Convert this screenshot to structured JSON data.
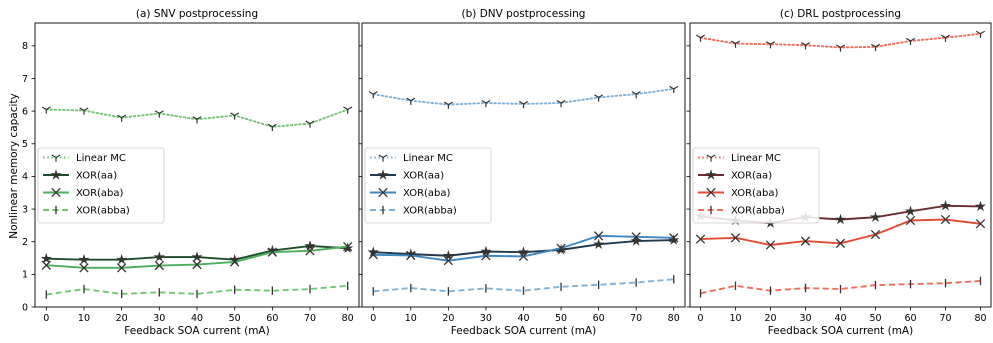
{
  "figure": {
    "ylabel": "Nonlinear memory capacity",
    "xlabel": "Feedback SOA current (mA)"
  },
  "chart_data": [
    {
      "type": "line",
      "title": "(a) SNV postprocessing",
      "xlabel": "Feedback SOA current (mA)",
      "ylabel": "Nonlinear memory capacity",
      "xlim": [
        -3,
        83
      ],
      "ylim": [
        0,
        8.7
      ],
      "xticks": [
        0,
        10,
        20,
        30,
        40,
        50,
        60,
        70,
        80
      ],
      "yticks": [
        0,
        1,
        2,
        3,
        4,
        5,
        6,
        7,
        8
      ],
      "grid": false,
      "legend_position": "center-left",
      "x": [
        0,
        10,
        20,
        30,
        40,
        50,
        60,
        70,
        80
      ],
      "series": [
        {
          "name": "Linear MC",
          "color": "#74c476",
          "style": "dotted",
          "marker": "tri",
          "values": [
            6.05,
            6.02,
            5.8,
            5.93,
            5.75,
            5.87,
            5.52,
            5.62,
            6.05
          ]
        },
        {
          "name": "XOR(aa)",
          "color": "#1f4d2b",
          "style": "solid",
          "marker": "star",
          "values": [
            1.48,
            1.45,
            1.45,
            1.53,
            1.53,
            1.45,
            1.73,
            1.87,
            1.8
          ]
        },
        {
          "name": "XOR(aba)",
          "color": "#4cae5c",
          "style": "solid",
          "marker": "x",
          "values": [
            1.28,
            1.2,
            1.2,
            1.27,
            1.3,
            1.38,
            1.68,
            1.72,
            1.85
          ]
        },
        {
          "name": "XOR(abba)",
          "color": "#74c476",
          "style": "dashed",
          "marker": "vline",
          "values": [
            0.38,
            0.55,
            0.4,
            0.45,
            0.4,
            0.53,
            0.5,
            0.55,
            0.65
          ]
        }
      ]
    },
    {
      "type": "line",
      "title": "(b) DNV postprocessing",
      "xlabel": "Feedback SOA current (mA)",
      "ylabel": "",
      "xlim": [
        -3,
        83
      ],
      "ylim": [
        0,
        8.7
      ],
      "xticks": [
        0,
        10,
        20,
        30,
        40,
        50,
        60,
        70,
        80
      ],
      "yticks": [
        0,
        1,
        2,
        3,
        4,
        5,
        6,
        7,
        8
      ],
      "grid": false,
      "legend_position": "center-left",
      "x": [
        0,
        10,
        20,
        30,
        40,
        50,
        60,
        70,
        80
      ],
      "series": [
        {
          "name": "Linear MC",
          "color": "#7fb1d8",
          "style": "dotted",
          "marker": "tri",
          "values": [
            6.52,
            6.32,
            6.2,
            6.25,
            6.22,
            6.25,
            6.42,
            6.52,
            6.68
          ]
        },
        {
          "name": "XOR(aa)",
          "color": "#22384d",
          "style": "solid",
          "marker": "star",
          "values": [
            1.68,
            1.62,
            1.57,
            1.7,
            1.68,
            1.75,
            1.92,
            2.02,
            2.05
          ]
        },
        {
          "name": "XOR(aba)",
          "color": "#3d87c2",
          "style": "solid",
          "marker": "x",
          "values": [
            1.6,
            1.58,
            1.42,
            1.57,
            1.55,
            1.8,
            2.18,
            2.15,
            2.12
          ]
        },
        {
          "name": "XOR(abba)",
          "color": "#7fb1d8",
          "style": "dashed",
          "marker": "vline",
          "values": [
            0.48,
            0.58,
            0.48,
            0.57,
            0.5,
            0.62,
            0.68,
            0.75,
            0.85
          ]
        }
      ]
    },
    {
      "type": "line",
      "title": "(c) DRL postprocessing",
      "xlabel": "Feedback SOA current (mA)",
      "ylabel": "",
      "xlim": [
        -3,
        83
      ],
      "ylim": [
        0,
        8.7
      ],
      "xticks": [
        0,
        10,
        20,
        30,
        40,
        50,
        60,
        70,
        80
      ],
      "yticks": [
        0,
        1,
        2,
        3,
        4,
        5,
        6,
        7,
        8
      ],
      "grid": false,
      "legend_position": "center-left",
      "x": [
        0,
        10,
        20,
        30,
        40,
        50,
        60,
        70,
        80
      ],
      "series": [
        {
          "name": "Linear MC",
          "color": "#f06e5a",
          "style": "dotted",
          "marker": "tri",
          "values": [
            8.25,
            8.07,
            8.05,
            8.02,
            7.95,
            7.97,
            8.15,
            8.25,
            8.37
          ]
        },
        {
          "name": "XOR(aa)",
          "color": "#6b2a2e",
          "style": "solid",
          "marker": "star",
          "values": [
            2.78,
            2.65,
            2.57,
            2.75,
            2.68,
            2.75,
            2.93,
            3.1,
            3.08
          ]
        },
        {
          "name": "XOR(aba)",
          "color": "#e34a33",
          "style": "solid",
          "marker": "x",
          "values": [
            2.08,
            2.12,
            1.9,
            2.02,
            1.95,
            2.22,
            2.65,
            2.68,
            2.55
          ]
        },
        {
          "name": "XOR(abba)",
          "color": "#f06e5a",
          "style": "dashed",
          "marker": "vline",
          "values": [
            0.42,
            0.65,
            0.5,
            0.58,
            0.55,
            0.67,
            0.7,
            0.73,
            0.8
          ]
        }
      ]
    }
  ]
}
